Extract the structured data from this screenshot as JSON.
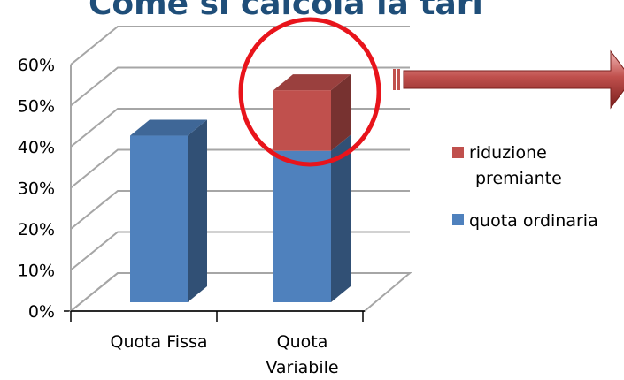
{
  "slide": {
    "title": "Come si calcola la tari"
  },
  "colors": {
    "quota_ordinaria": "#4f81bd",
    "riduzione_premiante": "#c0504d",
    "highlight_ring": "#e8141b",
    "arrow": "#c0504d",
    "gridline": "#a6a6a6",
    "title": "#1f4e79"
  },
  "chart_data": {
    "type": "bar",
    "stacked": true,
    "three_d": true,
    "categories": [
      "Quota Fissa",
      "Quota Variabile"
    ],
    "category_lines": [
      [
        "Quota Fissa"
      ],
      [
        "Quota",
        "Variabile"
      ]
    ],
    "series": [
      {
        "name": "quota ordinaria",
        "values": [
          0.44,
          0.4
        ]
      },
      {
        "name": "riduzione premiante",
        "values": [
          0.0,
          0.16
        ]
      }
    ],
    "legend_lines": [
      [
        "riduzione",
        "premiante"
      ],
      [
        "quota ordinaria"
      ]
    ],
    "ylim": [
      0,
      0.6
    ],
    "yticks": [
      "0%",
      "10%",
      "20%",
      "30%",
      "40%",
      "50%",
      "60%"
    ],
    "grid": true,
    "legend_position": "right",
    "xlabel": "",
    "ylabel": ""
  }
}
